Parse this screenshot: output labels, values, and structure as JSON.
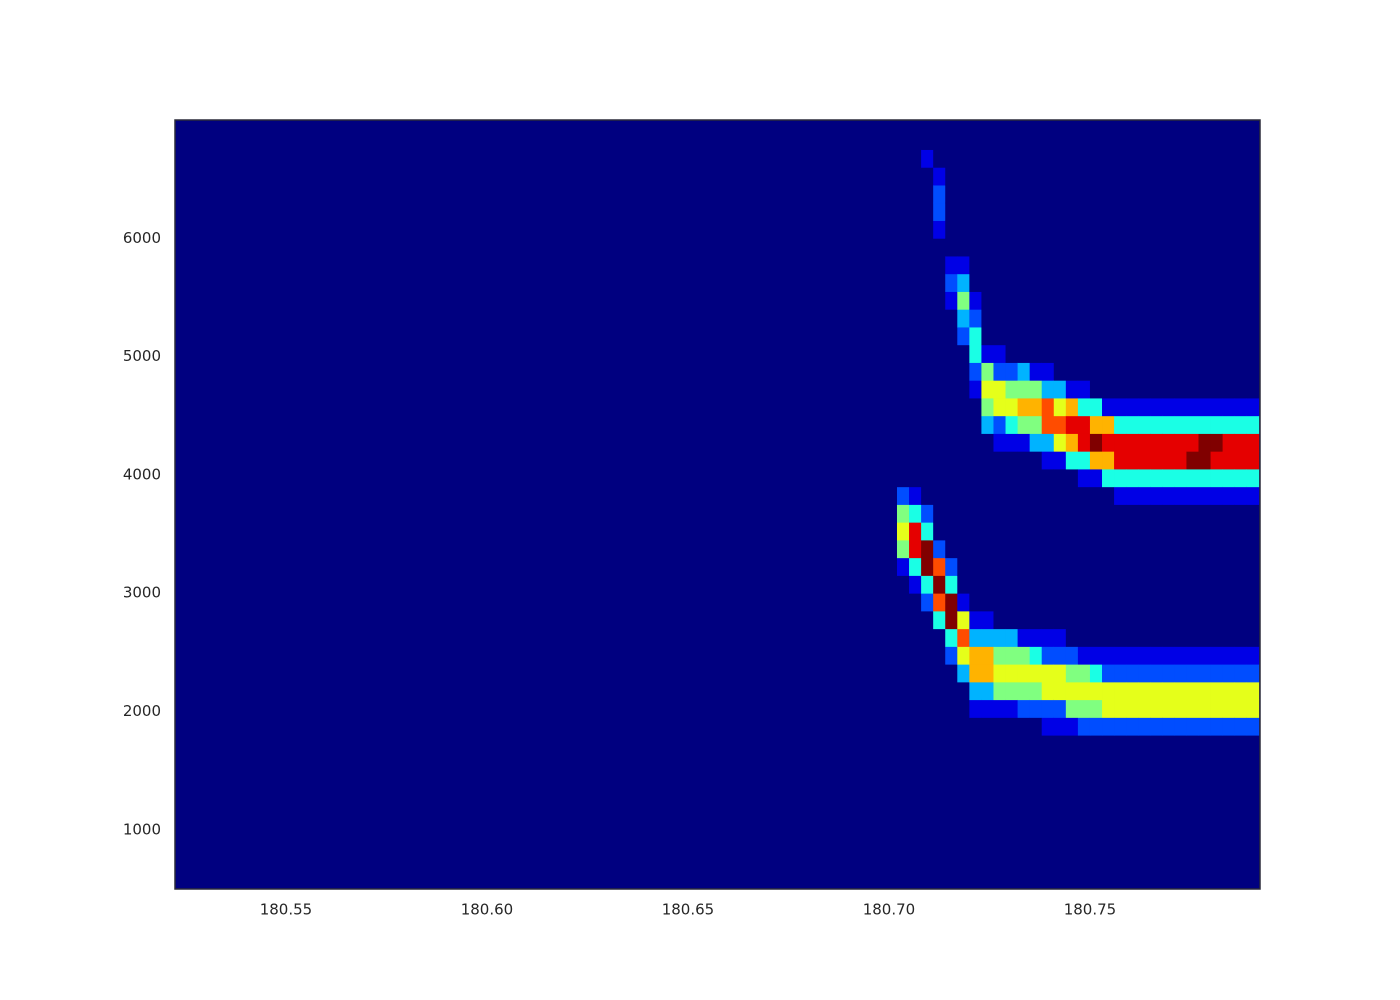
{
  "chart_data": {
    "type": "heatmap",
    "colormap": "jet",
    "zlim": [
      0,
      10
    ],
    "xlim": [
      180.5224,
      180.7923
    ],
    "ylim": [
      500,
      7000
    ],
    "xticks": [
      180.55,
      {
        "value": 180.6,
        "label": "180.60"
      },
      180.65,
      {
        "value": 180.7,
        "label": "180.70"
      },
      180.75
    ],
    "yticks": [
      1000,
      2000,
      3000,
      4000,
      5000,
      6000
    ],
    "x": [
      180.7035,
      180.7065,
      180.7095,
      180.7125,
      180.7155,
      180.7185,
      180.7215,
      180.7245,
      180.7275,
      180.7305,
      180.7335,
      180.7365,
      180.7395,
      180.7425,
      180.7455,
      180.7485,
      180.7515,
      180.7545,
      180.7575,
      180.7605,
      180.7635,
      180.7665,
      180.7695,
      180.7725,
      180.7755,
      180.7785,
      180.7815,
      180.7845,
      180.7875,
      180.7905
    ],
    "y": [
      1875,
      2025,
      2175,
      2325,
      2475,
      2625,
      2775,
      2925,
      3075,
      3225,
      3375,
      3525,
      3675,
      3825,
      3975,
      4125,
      4275,
      4425,
      4575,
      4725,
      4875,
      5025,
      5175,
      5325,
      5475,
      5625,
      5775,
      5925,
      6075,
      6225,
      6375,
      6525,
      6675,
      6825
    ],
    "values": [
      [
        0,
        0,
        0,
        0,
        0,
        0,
        0,
        0,
        0,
        1,
        5,
        6,
        5,
        2,
        0,
        0,
        0,
        0,
        0,
        0,
        0,
        0,
        0,
        0,
        0,
        0,
        0,
        0,
        0,
        0,
        0,
        0,
        0,
        0
      ],
      [
        0,
        0,
        0,
        0,
        0,
        0,
        0,
        0,
        1,
        4,
        9,
        9,
        4,
        1,
        0,
        0,
        0,
        0,
        0,
        0,
        0,
        0,
        0,
        0,
        0,
        0,
        0,
        0,
        0,
        0,
        0,
        0,
        0,
        0
      ],
      [
        0,
        0,
        0,
        0,
        0,
        0,
        0,
        2,
        4,
        10,
        10,
        4,
        2,
        0,
        0,
        0,
        0,
        0,
        0,
        0,
        0,
        0,
        0,
        0,
        0,
        0,
        0,
        0,
        0,
        0,
        0,
        0,
        1,
        0
      ],
      [
        0,
        0,
        0,
        0,
        0,
        0,
        4,
        8,
        10,
        8,
        2,
        0,
        0,
        0,
        0,
        0,
        0,
        0,
        0,
        0,
        0,
        0,
        0,
        0,
        0,
        0,
        0,
        0,
        1,
        2,
        2,
        1,
        0,
        0
      ],
      [
        0,
        0,
        0,
        0,
        2,
        4,
        10,
        10,
        4,
        2,
        0,
        0,
        0,
        0,
        0,
        0,
        0,
        0,
        0,
        0,
        0,
        0,
        0,
        0,
        1,
        2,
        1,
        0,
        0,
        0,
        0,
        0,
        0,
        0
      ],
      [
        0,
        0,
        0,
        3,
        6,
        8,
        6,
        1,
        0,
        0,
        0,
        0,
        0,
        0,
        0,
        0,
        0,
        0,
        0,
        0,
        0,
        0,
        2,
        3,
        5,
        3,
        1,
        0,
        0,
        0,
        0,
        0,
        0,
        0
      ],
      [
        0,
        1,
        3,
        7,
        7,
        3,
        1,
        0,
        0,
        0,
        0,
        0,
        0,
        0,
        0,
        0,
        0,
        0,
        0,
        1,
        2,
        4,
        4,
        2,
        1,
        0,
        0,
        0,
        0,
        0,
        0,
        0,
        0,
        0
      ],
      [
        0,
        1,
        3,
        7,
        7,
        3,
        1,
        0,
        0,
        0,
        0,
        0,
        0,
        0,
        0,
        0,
        0,
        3,
        5,
        6,
        5,
        1,
        0,
        0,
        0,
        0,
        0,
        0,
        0,
        0,
        0,
        0,
        0,
        0
      ],
      [
        0,
        1,
        5,
        6,
        5,
        3,
        0,
        0,
        0,
        0,
        0,
        0,
        0,
        0,
        0,
        0,
        1,
        2,
        6,
        6,
        2,
        1,
        0,
        0,
        0,
        0,
        0,
        0,
        0,
        0,
        0,
        0,
        0,
        0
      ],
      [
        0,
        1,
        5,
        6,
        5,
        3,
        0,
        0,
        0,
        0,
        0,
        0,
        0,
        0,
        0,
        0,
        1,
        4,
        6,
        5,
        2,
        0,
        0,
        0,
        0,
        0,
        0,
        0,
        0,
        0,
        0,
        0,
        0,
        0
      ],
      [
        0,
        2,
        5,
        6,
        5,
        1,
        0,
        0,
        0,
        0,
        0,
        0,
        0,
        0,
        0,
        0,
        1,
        5,
        7,
        5,
        3,
        0,
        0,
        0,
        0,
        0,
        0,
        0,
        0,
        0,
        0,
        0,
        0,
        0
      ],
      [
        0,
        2,
        5,
        6,
        4,
        1,
        0,
        0,
        0,
        0,
        0,
        0,
        0,
        0,
        0,
        0,
        3,
        5,
        7,
        5,
        1,
        0,
        0,
        0,
        0,
        0,
        0,
        0,
        0,
        0,
        0,
        0,
        0,
        0
      ],
      [
        1,
        2,
        6,
        6,
        2,
        1,
        0,
        0,
        0,
        0,
        0,
        0,
        0,
        0,
        0,
        1,
        3,
        8,
        8,
        3,
        1,
        0,
        0,
        0,
        0,
        0,
        0,
        0,
        0,
        0,
        0,
        0,
        0,
        0
      ],
      [
        1,
        2,
        6,
        6,
        2,
        1,
        0,
        0,
        0,
        0,
        0,
        0,
        0,
        0,
        0,
        1,
        6,
        8,
        6,
        3,
        0,
        0,
        0,
        0,
        0,
        0,
        0,
        0,
        0,
        0,
        0,
        0,
        0,
        0
      ],
      [
        1,
        5,
        6,
        5,
        2,
        0,
        0,
        0,
        0,
        0,
        0,
        0,
        0,
        0,
        0,
        4,
        7,
        9,
        7,
        1,
        0,
        0,
        0,
        0,
        0,
        0,
        0,
        0,
        0,
        0,
        0,
        0,
        0,
        0
      ],
      [
        2,
        5,
        6,
        5,
        1,
        0,
        0,
        0,
        0,
        0,
        0,
        0,
        0,
        0,
        1,
        4,
        9,
        9,
        4,
        1,
        0,
        0,
        0,
        0,
        0,
        0,
        0,
        0,
        0,
        0,
        0,
        0,
        0,
        0
      ],
      [
        2,
        5,
        6,
        4,
        1,
        0,
        0,
        0,
        0,
        0,
        0,
        0,
        0,
        0,
        1,
        7,
        10,
        7,
        4,
        0,
        0,
        0,
        0,
        0,
        0,
        0,
        0,
        0,
        0,
        0,
        0,
        0,
        0,
        0
      ],
      [
        2,
        6,
        6,
        2,
        1,
        0,
        0,
        0,
        0,
        0,
        0,
        0,
        0,
        0,
        4,
        7,
        9,
        7,
        1,
        0,
        0,
        0,
        0,
        0,
        0,
        0,
        0,
        0,
        0,
        0,
        0,
        0,
        0,
        0
      ],
      [
        2,
        6,
        6,
        2,
        1,
        0,
        0,
        0,
        0,
        0,
        0,
        0,
        0,
        1,
        4,
        9,
        9,
        4,
        1,
        0,
        0,
        0,
        0,
        0,
        0,
        0,
        0,
        0,
        0,
        0,
        0,
        0,
        0,
        0
      ],
      [
        2,
        6,
        6,
        2,
        1,
        0,
        0,
        0,
        0,
        0,
        0,
        0,
        0,
        1,
        4,
        9,
        9,
        4,
        1,
        0,
        0,
        0,
        0,
        0,
        0,
        0,
        0,
        0,
        0,
        0,
        0,
        0,
        0,
        0
      ],
      [
        2,
        6,
        6,
        2,
        1,
        0,
        0,
        0,
        0,
        0,
        0,
        0,
        0,
        1,
        4,
        9,
        9,
        4,
        1,
        0,
        0,
        0,
        0,
        0,
        0,
        0,
        0,
        0,
        0,
        0,
        0,
        0,
        0,
        0
      ],
      [
        2,
        6,
        6,
        2,
        1,
        0,
        0,
        0,
        0,
        0,
        0,
        0,
        0,
        1,
        4,
        9,
        9,
        4,
        1,
        0,
        0,
        0,
        0,
        0,
        0,
        0,
        0,
        0,
        0,
        0,
        0,
        0,
        0,
        0
      ],
      [
        2,
        6,
        6,
        2,
        1,
        0,
        0,
        0,
        0,
        0,
        0,
        0,
        0,
        1,
        4,
        9,
        9,
        4,
        1,
        0,
        0,
        0,
        0,
        0,
        0,
        0,
        0,
        0,
        0,
        0,
        0,
        0,
        0,
        0
      ],
      [
        2,
        6,
        6,
        2,
        1,
        0,
        0,
        0,
        0,
        0,
        0,
        0,
        0,
        1,
        4,
        9,
        9,
        4,
        1,
        0,
        0,
        0,
        0,
        0,
        0,
        0,
        0,
        0,
        0,
        0,
        0,
        0,
        0,
        0
      ],
      [
        2,
        6,
        6,
        2,
        1,
        0,
        0,
        0,
        0,
        0,
        0,
        0,
        0,
        1,
        4,
        10,
        9,
        4,
        1,
        0,
        0,
        0,
        0,
        0,
        0,
        0,
        0,
        0,
        0,
        0,
        0,
        0,
        0,
        0
      ],
      [
        2,
        6,
        6,
        2,
        1,
        0,
        0,
        0,
        0,
        0,
        0,
        0,
        0,
        1,
        4,
        10,
        10,
        4,
        1,
        0,
        0,
        0,
        0,
        0,
        0,
        0,
        0,
        0,
        0,
        0,
        0,
        0,
        0,
        0
      ],
      [
        2,
        6,
        6,
        2,
        1,
        0,
        0,
        0,
        0,
        0,
        0,
        0,
        0,
        1,
        4,
        9,
        10,
        4,
        1,
        0,
        0,
        0,
        0,
        0,
        0,
        0,
        0,
        0,
        0,
        0,
        0,
        0,
        0,
        0
      ],
      [
        2,
        6,
        6,
        2,
        1,
        0,
        0,
        0,
        0,
        0,
        0,
        0,
        0,
        1,
        4,
        9,
        9,
        4,
        1,
        0,
        0,
        0,
        0,
        0,
        0,
        0,
        0,
        0,
        0,
        0,
        0,
        0,
        0,
        0
      ],
      [
        2,
        6,
        6,
        2,
        1,
        0,
        0,
        0,
        0,
        0,
        0,
        0,
        0,
        1,
        4,
        9,
        9,
        4,
        1,
        0,
        0,
        0,
        0,
        0,
        0,
        0,
        0,
        0,
        0,
        0,
        0,
        0,
        0,
        0
      ],
      [
        2,
        6,
        6,
        2,
        1,
        0,
        0,
        0,
        0,
        0,
        0,
        0,
        0,
        1,
        4,
        9,
        9,
        4,
        1,
        0,
        0,
        0,
        0,
        0,
        0,
        0,
        0,
        0,
        0,
        0,
        0,
        0,
        0,
        0
      ]
    ]
  }
}
